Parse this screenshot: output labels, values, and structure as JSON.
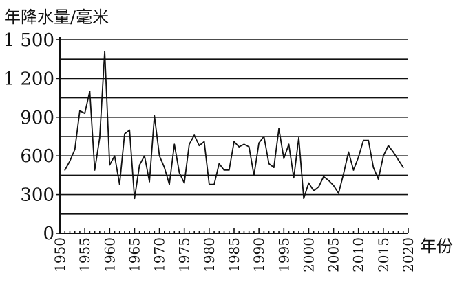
{
  "chart_data": {
    "type": "line",
    "ylabel": "年降水量/毫米",
    "xlabel": "年份",
    "ylim": [
      0,
      1500
    ],
    "xlim": [
      1950,
      2020
    ],
    "y_ticks": [
      "0",
      "300",
      "600",
      "900",
      "1 200",
      "1 500"
    ],
    "x_ticks": [
      "1950",
      "1955",
      "1960",
      "1965",
      "1970",
      "1975",
      "1980",
      "1985",
      "1990",
      "1995",
      "2000",
      "2005",
      "2010",
      "2015",
      "2020"
    ],
    "grid": "horizontal lines every 150",
    "series": [
      {
        "x": [
          1951,
          1952,
          1953,
          1954,
          1955,
          1956,
          1957,
          1958,
          1959,
          1960,
          1961,
          1962,
          1963,
          1964,
          1965,
          1966,
          1967,
          1968,
          1969,
          1970,
          1971,
          1972,
          1973,
          1974,
          1975,
          1976,
          1977,
          1978,
          1979,
          1980,
          1981,
          1982,
          1983,
          1984,
          1985,
          1986,
          1987,
          1988,
          1989,
          1990,
          1991,
          1992,
          1993,
          1994,
          1995,
          1996,
          1997,
          1998,
          1999,
          2000,
          2001,
          2002,
          2003,
          2004,
          2005,
          2006,
          2007,
          2008,
          2009,
          2010,
          2011,
          2012,
          2013,
          2014,
          2015,
          2016,
          2017,
          2018,
          2019
        ],
        "values": [
          490,
          560,
          650,
          950,
          930,
          1100,
          490,
          740,
          1410,
          530,
          600,
          380,
          770,
          800,
          270,
          530,
          600,
          400,
          910,
          600,
          510,
          380,
          690,
          470,
          390,
          690,
          760,
          680,
          710,
          380,
          380,
          540,
          490,
          490,
          710,
          670,
          690,
          670,
          450,
          700,
          750,
          540,
          510,
          810,
          580,
          690,
          430,
          740,
          270,
          390,
          330,
          360,
          440,
          410,
          370,
          310,
          460,
          630,
          490,
          590,
          720,
          720,
          510,
          420,
          600,
          680,
          630,
          570,
          510
        ]
      }
    ]
  }
}
